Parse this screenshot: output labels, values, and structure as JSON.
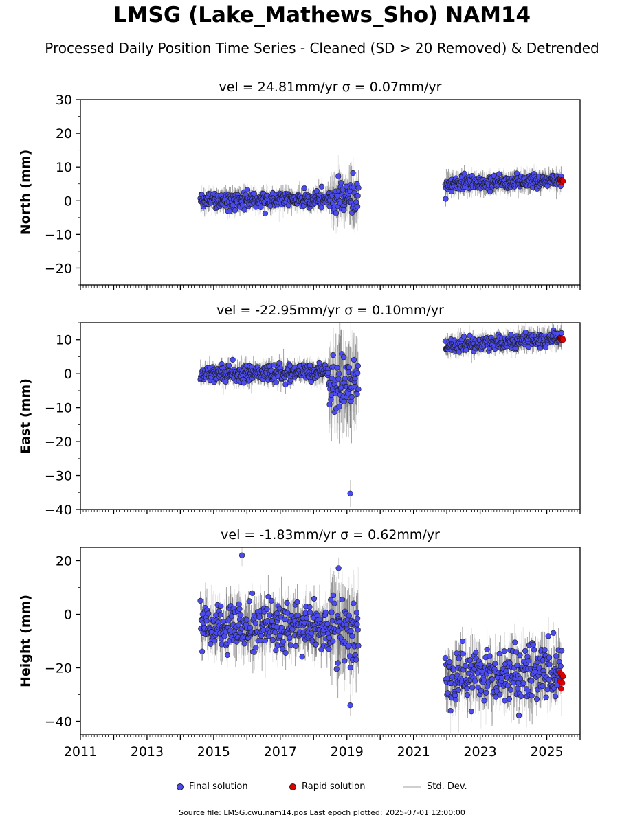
{
  "header": {
    "title": "LMSG (Lake_Mathews_Sho) NAM14",
    "subtitle": "Processed Daily Position Time Series - Cleaned (SD > 20 Removed) & Detrended"
  },
  "footer": "Source file: LMSG.cwu.nam14.pos  Last epoch plotted: 2025-07-01 12:00:00",
  "legend": {
    "final": "Final solution",
    "rapid": "Rapid solution",
    "std": "Std. Dev."
  },
  "colors": {
    "final": "#4b4bf0",
    "rapid": "#e00000",
    "std": "#cfcfcf",
    "std_dark": "#555555"
  },
  "chart_data": [
    {
      "type": "scatter",
      "title": "vel = 24.81mm/yr   σ = 0.07mm/yr",
      "ylabel": "North (mm)",
      "xlim": [
        2011,
        2026
      ],
      "ylim": [
        -25,
        30
      ],
      "yticks": [
        -20,
        -10,
        0,
        10,
        20,
        30
      ],
      "xticks": [
        2011,
        2013,
        2015,
        2017,
        2019,
        2021,
        2023,
        2025
      ],
      "segments": [
        {
          "start": 2014.6,
          "end": 2018.5,
          "level_start": 0.0,
          "level_end": 0.5,
          "scatter": 1.2,
          "sd": 2.5
        },
        {
          "start": 2018.5,
          "end": 2019.35,
          "level_start": 1.0,
          "level_end": 1.0,
          "scatter": 2.5,
          "sd": 6.0
        },
        {
          "start": 2021.95,
          "end": 2025.45,
          "level_start": 5.0,
          "level_end": 6.0,
          "scatter": 1.0,
          "sd": 2.5
        }
      ],
      "rapid": {
        "start": 2025.4,
        "end": 2025.5,
        "level": 5.8
      }
    },
    {
      "type": "scatter",
      "title": "vel = -22.95mm/yr   σ = 0.10mm/yr",
      "ylabel": "East (mm)",
      "xlim": [
        2011,
        2026
      ],
      "ylim": [
        -40,
        15
      ],
      "yticks": [
        -40,
        -30,
        -20,
        -10,
        0,
        10
      ],
      "xticks": [
        2011,
        2013,
        2015,
        2017,
        2019,
        2021,
        2023,
        2025
      ],
      "segments": [
        {
          "start": 2014.6,
          "end": 2018.45,
          "level_start": 0.0,
          "level_end": 0.5,
          "scatter": 1.2,
          "sd": 2.5
        },
        {
          "start": 2018.45,
          "end": 2019.35,
          "level_start": -3.0,
          "level_end": -2.0,
          "scatter": 4.5,
          "sd": 10.0
        },
        {
          "start": 2021.95,
          "end": 2025.45,
          "level_start": 8.0,
          "level_end": 10.5,
          "scatter": 1.0,
          "sd": 2.5
        }
      ],
      "outliers": [
        {
          "x": 2019.1,
          "y": -35.3
        }
      ],
      "rapid": {
        "start": 2025.4,
        "end": 2025.5,
        "level": 10.3
      }
    },
    {
      "type": "scatter",
      "title": "vel = -1.83mm/yr   σ = 0.62mm/yr",
      "ylabel": "Height (mm)",
      "xlim": [
        2011,
        2026
      ],
      "ylim": [
        -45,
        25
      ],
      "yticks": [
        -40,
        -20,
        0,
        20
      ],
      "xticks": [
        2011,
        2013,
        2015,
        2017,
        2019,
        2021,
        2023,
        2025
      ],
      "segments": [
        {
          "start": 2014.6,
          "end": 2018.5,
          "level_start": -4.0,
          "level_end": -5.0,
          "scatter": 4.0,
          "sd": 7.0
        },
        {
          "start": 2018.5,
          "end": 2019.35,
          "level_start": -4.0,
          "level_end": -8.0,
          "scatter": 6.0,
          "sd": 12.0
        },
        {
          "start": 2021.95,
          "end": 2025.45,
          "level_start": -24.0,
          "level_end": -22.0,
          "scatter": 5.0,
          "sd": 7.0
        }
      ],
      "outliers": [
        {
          "x": 2015.85,
          "y": 22.0
        },
        {
          "x": 2018.75,
          "y": 17.2
        },
        {
          "x": 2019.1,
          "y": -34.0
        },
        {
          "x": 2025.2,
          "y": -7.0
        }
      ],
      "rapid": {
        "start": 2025.4,
        "end": 2025.5,
        "level": -25.0,
        "spread": 3.5
      }
    }
  ]
}
